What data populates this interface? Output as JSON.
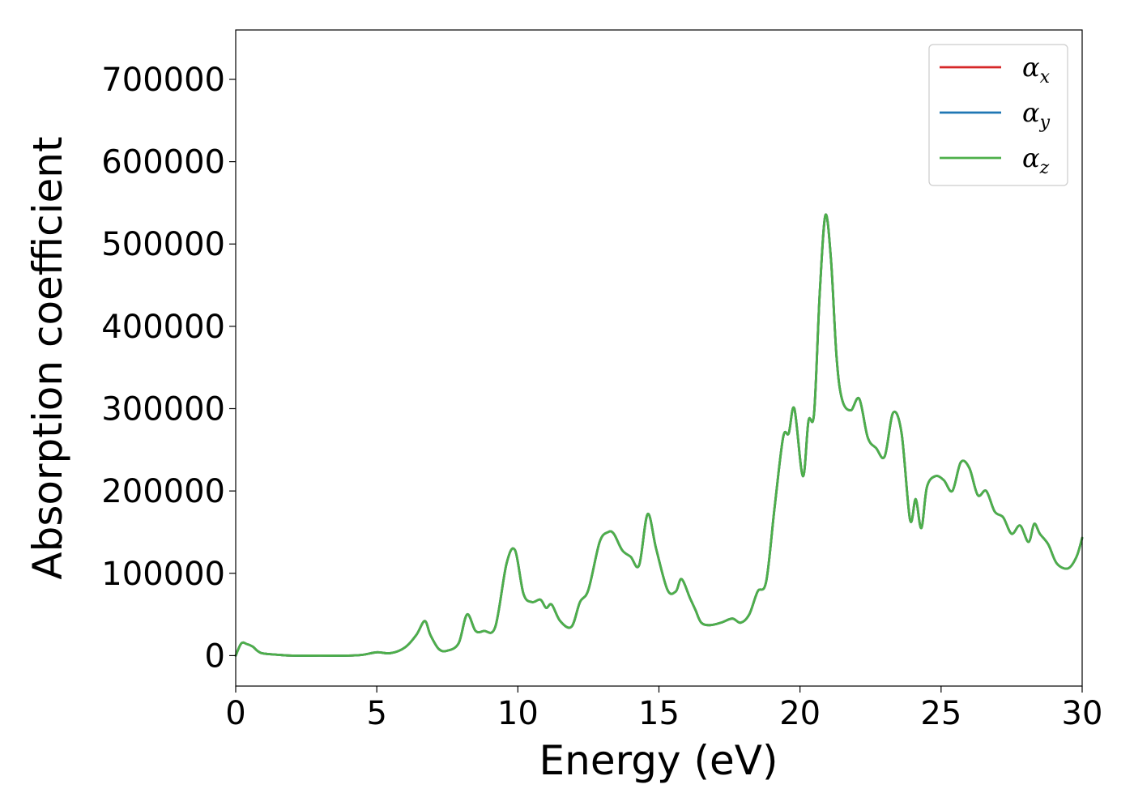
{
  "chart_data": {
    "type": "line",
    "title": "",
    "xlabel": "Energy (eV)",
    "ylabel": "Absorption coefficient",
    "xlim": [
      0,
      30
    ],
    "ylim": [
      -37000,
      760000
    ],
    "xticks": [
      0,
      5,
      10,
      15,
      20,
      25,
      30
    ],
    "yticks": [
      0,
      100000,
      200000,
      300000,
      400000,
      500000,
      600000,
      700000
    ],
    "xtick_labels": [
      "0",
      "5",
      "10",
      "15",
      "20",
      "25",
      "30"
    ],
    "ytick_labels": [
      "0",
      "100000",
      "200000",
      "300000",
      "400000",
      "500000",
      "600000",
      "700000"
    ],
    "grid": false,
    "legend_position": "top-right",
    "legend": [
      {
        "symbol": "α",
        "subscript": "x",
        "color": "#d62728"
      },
      {
        "symbol": "α",
        "subscript": "y",
        "color": "#1f77b4"
      },
      {
        "symbol": "α",
        "subscript": "z",
        "color": "#4daf4a"
      }
    ],
    "x": [
      0,
      0.2,
      0.4,
      0.6,
      0.8,
      1.0,
      1.5,
      2,
      3,
      4,
      4.5,
      5.0,
      5.5,
      6.0,
      6.4,
      6.7,
      6.9,
      7.2,
      7.5,
      7.9,
      8.2,
      8.5,
      8.8,
      9.2,
      9.6,
      9.9,
      10.2,
      10.5,
      10.8,
      11.0,
      11.2,
      11.5,
      11.9,
      12.2,
      12.5,
      12.9,
      13.2,
      13.4,
      13.7,
      14.0,
      14.3,
      14.6,
      14.9,
      15.3,
      15.6,
      15.8,
      16.1,
      16.3,
      16.5,
      16.8,
      17.2,
      17.6,
      17.9,
      18.2,
      18.5,
      18.8,
      19.1,
      19.4,
      19.6,
      19.8,
      20.1,
      20.3,
      20.5,
      20.7,
      20.9,
      21.1,
      21.3,
      21.5,
      21.8,
      22.1,
      22.4,
      22.7,
      23.0,
      23.3,
      23.6,
      23.9,
      24.1,
      24.3,
      24.5,
      24.8,
      25.1,
      25.4,
      25.7,
      26.0,
      26.3,
      26.6,
      26.9,
      27.2,
      27.5,
      27.8,
      28.1,
      28.3,
      28.5,
      28.8,
      29.1,
      29.5,
      29.8,
      30.0
    ],
    "series": [
      {
        "name": "α_x",
        "color": "#d62728",
        "values": [
          0,
          15000,
          14000,
          11000,
          5000,
          2500,
          1000,
          0,
          0,
          0,
          1000,
          4000,
          3000,
          10000,
          25000,
          42000,
          25000,
          8000,
          6000,
          15000,
          50000,
          30000,
          30000,
          35000,
          112000,
          128000,
          75000,
          65000,
          68000,
          58000,
          62000,
          42000,
          35000,
          65000,
          80000,
          138000,
          150000,
          148000,
          128000,
          120000,
          110000,
          172000,
          130000,
          80000,
          78000,
          93000,
          70000,
          55000,
          40000,
          37000,
          40000,
          45000,
          40000,
          50000,
          78000,
          90000,
          180000,
          265000,
          270000,
          300000,
          218000,
          285000,
          295000,
          440000,
          535000,
          480000,
          360000,
          310000,
          298000,
          312000,
          265000,
          252000,
          242000,
          295000,
          270000,
          165000,
          190000,
          155000,
          205000,
          218000,
          213000,
          200000,
          235000,
          228000,
          195000,
          200000,
          175000,
          168000,
          148000,
          158000,
          138000,
          160000,
          148000,
          135000,
          112000,
          106000,
          120000,
          143000
        ]
      },
      {
        "name": "α_y",
        "color": "#1f77b4",
        "values": [
          0,
          15000,
          14000,
          11000,
          5000,
          2500,
          1000,
          0,
          0,
          0,
          1000,
          4000,
          3000,
          10000,
          25000,
          42000,
          25000,
          8000,
          6000,
          15000,
          50000,
          30000,
          30000,
          35000,
          112000,
          128000,
          75000,
          65000,
          68000,
          58000,
          62000,
          42000,
          35000,
          65000,
          80000,
          138000,
          150000,
          148000,
          128000,
          120000,
          110000,
          172000,
          130000,
          80000,
          78000,
          93000,
          70000,
          55000,
          40000,
          37000,
          40000,
          45000,
          40000,
          50000,
          78000,
          90000,
          180000,
          265000,
          270000,
          300000,
          218000,
          285000,
          295000,
          440000,
          535000,
          480000,
          360000,
          310000,
          298000,
          312000,
          265000,
          252000,
          242000,
          295000,
          270000,
          165000,
          190000,
          155000,
          205000,
          218000,
          213000,
          200000,
          235000,
          228000,
          195000,
          200000,
          175000,
          168000,
          148000,
          158000,
          138000,
          160000,
          148000,
          135000,
          112000,
          106000,
          120000,
          143000
        ]
      },
      {
        "name": "α_z",
        "color": "#4daf4a",
        "values": [
          0,
          15000,
          14000,
          11000,
          5000,
          2500,
          1000,
          0,
          0,
          0,
          1000,
          4000,
          3000,
          10000,
          25000,
          42000,
          25000,
          8000,
          6000,
          15000,
          50000,
          30000,
          30000,
          35000,
          112000,
          128000,
          75000,
          65000,
          68000,
          58000,
          62000,
          42000,
          35000,
          65000,
          80000,
          138000,
          150000,
          148000,
          128000,
          120000,
          110000,
          172000,
          130000,
          80000,
          78000,
          93000,
          70000,
          55000,
          40000,
          37000,
          40000,
          45000,
          40000,
          50000,
          78000,
          90000,
          180000,
          265000,
          270000,
          300000,
          218000,
          285000,
          295000,
          440000,
          535000,
          480000,
          360000,
          310000,
          298000,
          312000,
          265000,
          252000,
          242000,
          295000,
          270000,
          165000,
          190000,
          155000,
          205000,
          218000,
          213000,
          200000,
          235000,
          228000,
          195000,
          200000,
          175000,
          168000,
          148000,
          158000,
          138000,
          160000,
          148000,
          135000,
          112000,
          106000,
          120000,
          143000
        ]
      }
    ]
  }
}
